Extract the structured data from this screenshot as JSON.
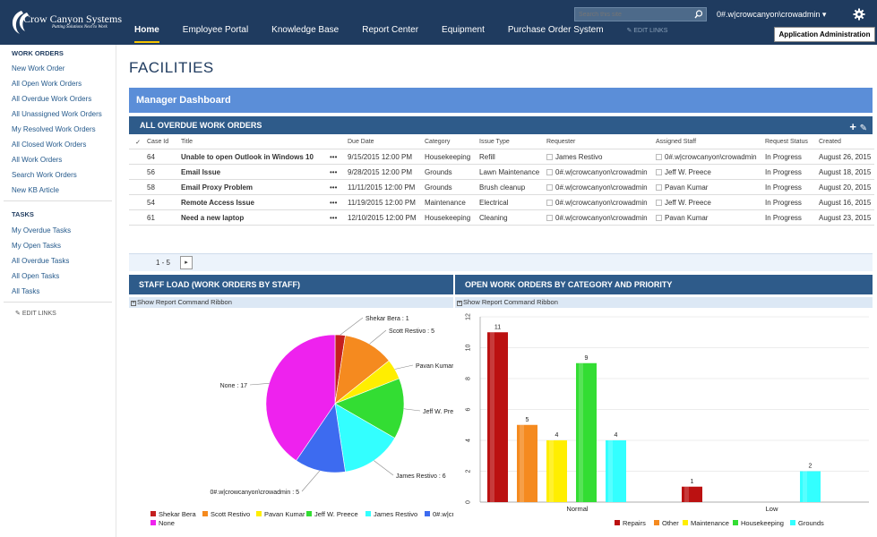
{
  "header": {
    "logo_text": "Crow Canyon Systems",
    "logo_tagline": "Putting Solutions Next to Work",
    "nav": [
      "Home",
      "Employee Portal",
      "Knowledge Base",
      "Report Center",
      "Equipment",
      "Purchase Order System"
    ],
    "edit_links": "EDIT LINKS",
    "search_placeholder": "Search this site",
    "user": "0#.w|crowcanyon\\crowadmin ▾",
    "admin_button": "Application Administration",
    "colors": {
      "bar": "#1f3b5f",
      "active_underline": "#f5c400"
    }
  },
  "sidebar": {
    "sections": [
      {
        "title": "WORK ORDERS",
        "items": [
          "New Work Order",
          "All Open Work Orders",
          "All Overdue Work Orders",
          "All Unassigned Work Orders",
          "My Resolved Work Orders",
          "All Closed Work Orders",
          "All Work Orders",
          "Search Work Orders",
          "New KB Article"
        ]
      },
      {
        "title": "TASKS",
        "items": [
          "My Overdue Tasks",
          "My Open Tasks",
          "All Overdue Tasks",
          "All Open Tasks",
          "All Tasks"
        ]
      }
    ],
    "edit_links": "EDIT LINKS"
  },
  "main": {
    "page_title": "FACILITIES",
    "dashboard_title": "Manager Dashboard",
    "overdue_title": "ALL OVERDUE WORK ORDERS",
    "table": {
      "headers": [
        "Case Id",
        "Title",
        "Due Date",
        "Category",
        "Issue Type",
        "Requester",
        "Assigned Staff",
        "Request Status",
        "Created"
      ],
      "rows": [
        {
          "id": "64",
          "title": "Unable to open Outlook in Windows 10",
          "due": "9/15/2015 12:00 PM",
          "category": "Housekeeping",
          "issue": "Refill",
          "requester": "James Restivo",
          "staff": "0#.w|crowcanyon\\crowadmin",
          "status": "In Progress",
          "created": "August 26, 2015"
        },
        {
          "id": "56",
          "title": "Email Issue",
          "due": "9/28/2015 12:00 PM",
          "category": "Grounds",
          "issue": "Lawn Maintenance",
          "requester": "0#.w|crowcanyon\\crowadmin",
          "staff": "Jeff W. Preece",
          "status": "In Progress",
          "created": "August 18, 2015"
        },
        {
          "id": "58",
          "title": "Email Proxy Problem",
          "due": "11/11/2015 12:00 PM",
          "category": "Grounds",
          "issue": "Brush cleanup",
          "requester": "0#.w|crowcanyon\\crowadmin",
          "staff": "Pavan Kumar",
          "status": "In Progress",
          "created": "August 20, 2015"
        },
        {
          "id": "54",
          "title": "Remote Access Issue",
          "due": "11/19/2015 12:00 PM",
          "category": "Maintenance",
          "issue": "Electrical",
          "requester": "0#.w|crowcanyon\\crowadmin",
          "staff": "Jeff W. Preece",
          "status": "In Progress",
          "created": "August 16, 2015"
        },
        {
          "id": "61",
          "title": "Need a new laptop",
          "due": "12/10/2015 12:00 PM",
          "category": "Housekeeping",
          "issue": "Cleaning",
          "requester": "0#.w|crowcanyon\\crowadmin",
          "staff": "Pavan Kumar",
          "status": "In Progress",
          "created": "August 23, 2015"
        }
      ],
      "ellipsis": "•••",
      "pager": "1 - 5",
      "pager_next": "▸"
    },
    "staff_panel_title": "STAFF LOAD (WORK ORDERS BY STAFF)",
    "category_panel_title": "OPEN WORK ORDERS BY CATEGORY AND PRIORITY",
    "ribbon": "Show Report Command Ribbon"
  },
  "chart_data": [
    {
      "type": "pie",
      "labels": [
        "Shekar Bera",
        "Scott Restivo",
        "Pavan Kumar",
        "Jeff W. Preece",
        "James Restivo",
        "0#.w|crowcanyon\\crowadmin",
        "None"
      ],
      "values": [
        1,
        5,
        2,
        6,
        6,
        5,
        17
      ],
      "slice_labels": [
        "Shekar Bera : 1",
        "Scott Restivo : 5",
        "Pavan Kumar",
        "Jeff W. Pre",
        "James Restivo : 6",
        "0#.w|crowcanyon\\crowadmin : 5",
        "None : 17"
      ],
      "legend": [
        "Shekar Bera",
        "Scott Restivo",
        "Pavan Kumar",
        "Jeff W. Preece",
        "James Restivo",
        "0#.w|cr",
        "None"
      ],
      "colors": [
        "#c41f1f",
        "#f58a1f",
        "#ffee00",
        "#33dd33",
        "#33ffff",
        "#3d6bf0",
        "#ee22ee"
      ],
      "legend_position": "bottom"
    },
    {
      "type": "bar",
      "categories": [
        "Normal",
        "Low"
      ],
      "series": [
        {
          "name": "Repairs",
          "values": [
            11,
            1
          ]
        },
        {
          "name": "Other",
          "values": [
            5,
            null
          ]
        },
        {
          "name": "Maintenance",
          "values": [
            4,
            null
          ]
        },
        {
          "name": "Housekeeping",
          "values": [
            9,
            null
          ]
        },
        {
          "name": "Grounds",
          "values": [
            4,
            2
          ]
        }
      ],
      "colors": [
        "#bb1111",
        "#f58a1f",
        "#ffee00",
        "#33dd33",
        "#33ffff"
      ],
      "ylim": [
        0,
        12
      ],
      "yticks": [
        0,
        2,
        4,
        6,
        8,
        10,
        12
      ],
      "legend_position": "bottom"
    }
  ]
}
